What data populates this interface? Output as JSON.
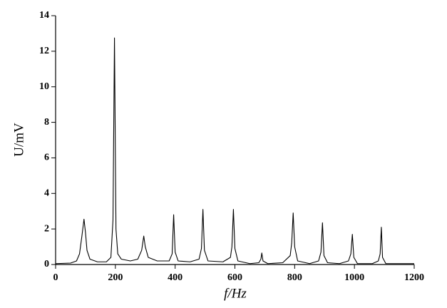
{
  "chart_data": {
    "type": "line",
    "xlabel": "f/Hz",
    "ylabel": "U/mV",
    "x": [
      0,
      50,
      70,
      80,
      88,
      95,
      100,
      105,
      115,
      140,
      170,
      185,
      192,
      197,
      202,
      208,
      220,
      250,
      275,
      288,
      295,
      300,
      310,
      340,
      380,
      390,
      395,
      400,
      410,
      450,
      480,
      488,
      493,
      498,
      510,
      560,
      585,
      590,
      595,
      600,
      610,
      650,
      680,
      687,
      690,
      694,
      710,
      760,
      785,
      790,
      795,
      800,
      810,
      850,
      880,
      888,
      893,
      898,
      910,
      950,
      980,
      988,
      993,
      998,
      1010,
      1060,
      1080,
      1086,
      1090,
      1094,
      1105,
      1200
    ],
    "series": [
      {
        "color": "#000000",
        "values": [
          0.05,
          0.08,
          0.2,
          0.6,
          1.6,
          2.55,
          1.8,
          0.8,
          0.3,
          0.15,
          0.15,
          0.4,
          2.5,
          12.75,
          2.0,
          0.6,
          0.3,
          0.2,
          0.3,
          0.8,
          1.6,
          1.0,
          0.4,
          0.2,
          0.2,
          0.6,
          2.8,
          0.7,
          0.2,
          0.15,
          0.3,
          0.9,
          3.1,
          0.8,
          0.2,
          0.15,
          0.4,
          1.0,
          3.1,
          0.9,
          0.2,
          0.05,
          0.1,
          0.3,
          0.65,
          0.2,
          0.05,
          0.1,
          0.5,
          1.2,
          2.9,
          1.0,
          0.2,
          0.05,
          0.2,
          0.7,
          2.35,
          0.5,
          0.1,
          0.05,
          0.2,
          0.6,
          1.7,
          0.4,
          0.05,
          0.05,
          0.2,
          0.6,
          2.1,
          0.4,
          0.05,
          0.05
        ]
      }
    ],
    "xlim": [
      0,
      1200
    ],
    "xticks": [
      0,
      200,
      400,
      600,
      800,
      1000,
      1200
    ],
    "ylim": [
      0,
      14
    ],
    "yticks": [
      0,
      2,
      4,
      6,
      8,
      10,
      12,
      14
    ]
  }
}
